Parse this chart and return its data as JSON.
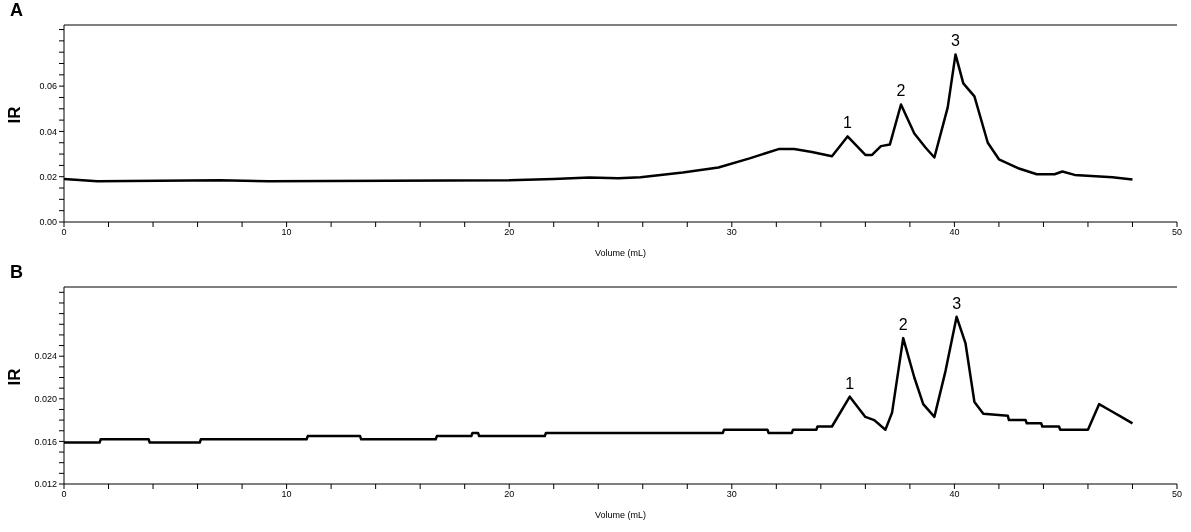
{
  "chart_data": [
    {
      "type": "line",
      "title": "A",
      "xlabel": "Volume (mL)",
      "ylabel": "IR",
      "xlim": [
        0,
        50
      ],
      "ylim": [
        0,
        0.087
      ],
      "xticks": [
        0,
        {
          "value": 2,
          "label": null
        },
        {
          "value": 4,
          "label": null
        },
        {
          "value": 6,
          "label": null
        },
        {
          "value": 8,
          "label": null
        },
        10,
        {
          "value": 12,
          "label": null
        },
        {
          "value": 14,
          "label": null
        },
        {
          "value": 16,
          "label": null
        },
        {
          "value": 18,
          "label": null
        },
        20,
        {
          "value": 22,
          "label": null
        },
        {
          "value": 24,
          "label": null
        },
        {
          "value": 26,
          "label": null
        },
        {
          "value": 28,
          "label": null
        },
        30,
        {
          "value": 32,
          "label": null
        },
        {
          "value": 34,
          "label": null
        },
        {
          "value": 36,
          "label": null
        },
        {
          "value": 38,
          "label": null
        },
        40,
        {
          "value": 42,
          "label": null
        },
        {
          "value": 44,
          "label": null
        },
        {
          "value": 46,
          "label": null
        },
        {
          "value": 48,
          "label": null
        },
        50
      ],
      "yticks": [
        {
          "value": 0,
          "label": "0.00"
        },
        {
          "value": 0.005,
          "label": null
        },
        {
          "value": 0.01,
          "label": null
        },
        {
          "value": 0.015,
          "label": null
        },
        {
          "value": 0.02,
          "label": "0.02"
        },
        {
          "value": 0.025,
          "label": null
        },
        {
          "value": 0.03,
          "label": null
        },
        {
          "value": 0.035,
          "label": null
        },
        {
          "value": 0.04,
          "label": "0.04"
        },
        {
          "value": 0.045,
          "label": null
        },
        {
          "value": 0.05,
          "label": null
        },
        {
          "value": 0.055,
          "label": null
        },
        {
          "value": 0.06,
          "label": "0.06"
        },
        {
          "value": 0.065,
          "label": null
        },
        {
          "value": 0.07,
          "label": null
        },
        {
          "value": 0.075,
          "label": null
        },
        {
          "value": 0.08,
          "label": null
        },
        {
          "value": 0.085,
          "label": null
        }
      ],
      "grid": false,
      "legend": false,
      "marker": "none",
      "line_style": "solid",
      "annotations": [
        {
          "text": "1",
          "x": 35.2,
          "y": 0.0378
        },
        {
          "text": "2",
          "x": 37.6,
          "y": 0.0519
        },
        {
          "text": "3",
          "x": 40.05,
          "y": 0.074
        }
      ],
      "series": [
        {
          "color": "#000000",
          "x": [
            0,
            1.5,
            7,
            9.2,
            20,
            22,
            23.6,
            24.9,
            25.9,
            27.8,
            29.4,
            30.8,
            32.1,
            32.8,
            33.6,
            34.5,
            35.2,
            36.0,
            36.3,
            36.7,
            37.1,
            37.6,
            38.2,
            38.7,
            39.1,
            39.7,
            40.05,
            40.4,
            40.9,
            41.5,
            42.0,
            42.9,
            43.7,
            44.5,
            44.85,
            45.4,
            47.1,
            48.0
          ],
          "values": [
            0.019,
            0.018,
            0.0184,
            0.018,
            0.0184,
            0.019,
            0.0196,
            0.0193,
            0.0198,
            0.0219,
            0.0241,
            0.0281,
            0.0322,
            0.0322,
            0.0309,
            0.029,
            0.0378,
            0.0296,
            0.0296,
            0.0335,
            0.0342,
            0.0519,
            0.0391,
            0.0329,
            0.0285,
            0.0506,
            0.074,
            0.0612,
            0.0555,
            0.035,
            0.0277,
            0.0236,
            0.0211,
            0.0211,
            0.0223,
            0.0208,
            0.0198,
            0.0188
          ]
        }
      ]
    },
    {
      "type": "line",
      "title": "B",
      "xlabel": "Volume (mL)",
      "ylabel": "IR",
      "xlim": [
        0,
        50
      ],
      "ylim": [
        0.012,
        0.0305
      ],
      "xticks": [
        0,
        {
          "value": 2,
          "label": null
        },
        {
          "value": 4,
          "label": null
        },
        {
          "value": 6,
          "label": null
        },
        {
          "value": 8,
          "label": null
        },
        10,
        {
          "value": 12,
          "label": null
        },
        {
          "value": 14,
          "label": null
        },
        {
          "value": 16,
          "label": null
        },
        {
          "value": 18,
          "label": null
        },
        20,
        {
          "value": 22,
          "label": null
        },
        {
          "value": 24,
          "label": null
        },
        {
          "value": 26,
          "label": null
        },
        {
          "value": 28,
          "label": null
        },
        30,
        {
          "value": 32,
          "label": null
        },
        {
          "value": 34,
          "label": null
        },
        {
          "value": 36,
          "label": null
        },
        {
          "value": 38,
          "label": null
        },
        40,
        {
          "value": 42,
          "label": null
        },
        {
          "value": 44,
          "label": null
        },
        {
          "value": 46,
          "label": null
        },
        {
          "value": 48,
          "label": null
        },
        50
      ],
      "yticks": [
        {
          "value": 0.012,
          "label": "0.012"
        },
        {
          "value": 0.013,
          "label": null
        },
        {
          "value": 0.014,
          "label": null
        },
        {
          "value": 0.015,
          "label": null
        },
        {
          "value": 0.016,
          "label": "0.016"
        },
        {
          "value": 0.017,
          "label": null
        },
        {
          "value": 0.018,
          "label": null
        },
        {
          "value": 0.019,
          "label": null
        },
        {
          "value": 0.02,
          "label": "0.020"
        },
        {
          "value": 0.021,
          "label": null
        },
        {
          "value": 0.022,
          "label": null
        },
        {
          "value": 0.023,
          "label": null
        },
        {
          "value": 0.024,
          "label": "0.024"
        },
        {
          "value": 0.025,
          "label": null
        },
        {
          "value": 0.026,
          "label": null
        },
        {
          "value": 0.027,
          "label": null
        },
        {
          "value": 0.028,
          "label": null
        },
        {
          "value": 0.029,
          "label": null
        },
        {
          "value": 0.03,
          "label": null
        }
      ],
      "grid": false,
      "legend": false,
      "marker": "none",
      "line_style": "solid",
      "annotations": [
        {
          "text": "1",
          "x": 35.3,
          "y": 0.0202
        },
        {
          "text": "2",
          "x": 37.7,
          "y": 0.0257
        },
        {
          "text": "3",
          "x": 40.1,
          "y": 0.0277
        }
      ],
      "series": [
        {
          "color": "#000000",
          "x": [
            0,
            1.6,
            1.65,
            3.8,
            3.85,
            6.1,
            6.15,
            10.9,
            10.95,
            13.3,
            13.35,
            16.7,
            16.75,
            18.3,
            18.35,
            18.6,
            18.65,
            21.6,
            21.65,
            29.6,
            29.65,
            31.6,
            31.65,
            32.7,
            32.75,
            33.8,
            33.85,
            34.5,
            35.3,
            36.0,
            36.4,
            36.9,
            37.2,
            37.7,
            38.2,
            38.6,
            39.1,
            39.6,
            40.1,
            40.5,
            40.9,
            41.3,
            42.4,
            42.45,
            43.2,
            43.25,
            43.9,
            43.95,
            44.7,
            44.75,
            46.0,
            46.5,
            47.0,
            47.5,
            48.0
          ],
          "values": [
            0.0159,
            0.0159,
            0.0162,
            0.0162,
            0.0159,
            0.0159,
            0.0162,
            0.0162,
            0.0165,
            0.0165,
            0.0162,
            0.0162,
            0.0165,
            0.0165,
            0.0168,
            0.0168,
            0.0165,
            0.0165,
            0.0168,
            0.0168,
            0.0171,
            0.0171,
            0.0168,
            0.0168,
            0.0171,
            0.0171,
            0.0174,
            0.0174,
            0.0202,
            0.0183,
            0.018,
            0.0171,
            0.0187,
            0.0257,
            0.022,
            0.0195,
            0.0183,
            0.0226,
            0.0277,
            0.0252,
            0.0197,
            0.0186,
            0.0184,
            0.018,
            0.018,
            0.0177,
            0.0177,
            0.0174,
            0.0174,
            0.0171,
            0.0171,
            0.0195,
            0.0189,
            0.0183,
            0.0177
          ]
        }
      ]
    }
  ]
}
